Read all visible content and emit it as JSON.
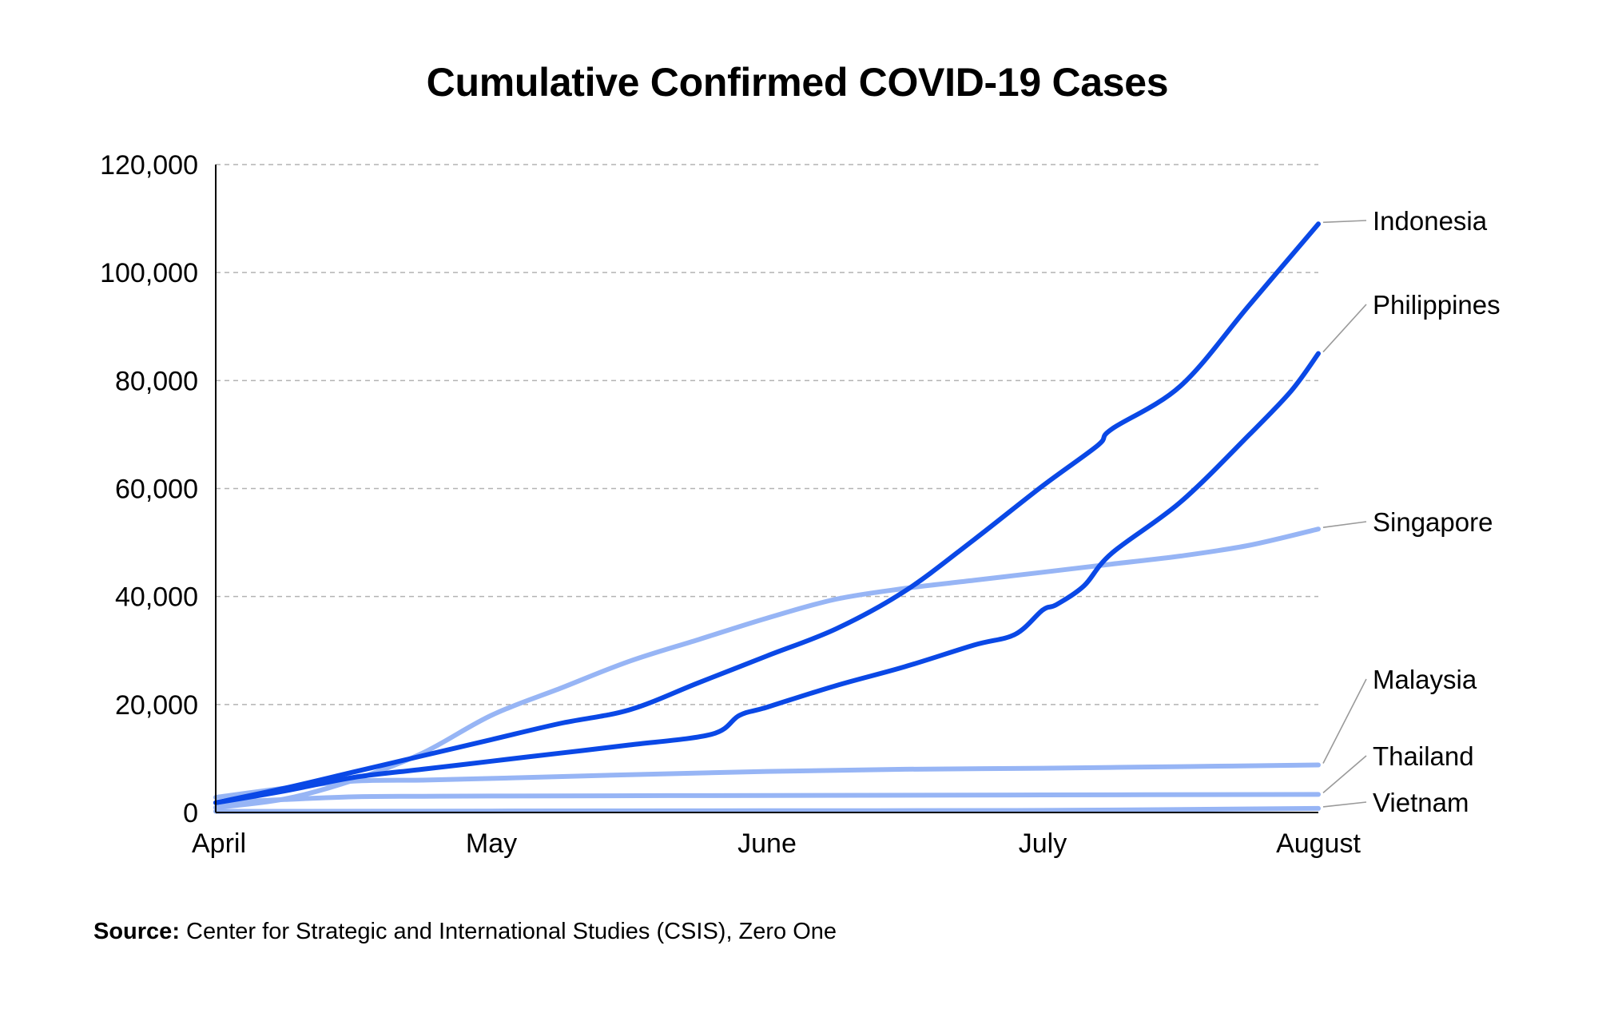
{
  "chart_data": {
    "type": "line",
    "title": "Cumulative Confirmed COVID-19 Cases",
    "xlabel": "",
    "ylabel": "",
    "x_ticks": [
      "April",
      "May",
      "June",
      "July",
      "August"
    ],
    "y_ticks": [
      "0",
      "20,000",
      "40,000",
      "60,000",
      "80,000",
      "100,000",
      "120,000"
    ],
    "ylim": [
      0,
      120000
    ],
    "grid": "horizontal dashed",
    "legend": "direct labels at right end of lines",
    "series": [
      {
        "name": "Indonesia",
        "color": "#0a48e6",
        "width": 6,
        "x": [
          0,
          0.25,
          0.5,
          0.75,
          1,
          1.25,
          1.5,
          1.75,
          2,
          2.25,
          2.5,
          2.75,
          3,
          3.2,
          3.25,
          3.5,
          3.75,
          4
        ],
        "y": [
          1800,
          4500,
          7500,
          10500,
          13500,
          16500,
          19000,
          24000,
          29000,
          34000,
          41000,
          50500,
          60500,
          68000,
          71000,
          79000,
          94000,
          109000
        ]
      },
      {
        "name": "Philippines",
        "color": "#0a48e6",
        "width": 6,
        "x": [
          0,
          0.25,
          0.5,
          0.75,
          1,
          1.25,
          1.5,
          1.8,
          1.9,
          2,
          2.25,
          2.5,
          2.75,
          2.9,
          3,
          3.05,
          3.15,
          3.25,
          3.5,
          3.75,
          3.9,
          4
        ],
        "y": [
          1800,
          4000,
          6500,
          8000,
          9500,
          11000,
          12500,
          14500,
          18000,
          19500,
          23500,
          27000,
          31000,
          33000,
          37500,
          38500,
          42000,
          48000,
          57500,
          70000,
          78000,
          85000
        ]
      },
      {
        "name": "Singapore",
        "color": "#97b5f5",
        "width": 6,
        "x": [
          0,
          0.25,
          0.5,
          0.75,
          1,
          1.25,
          1.5,
          1.75,
          2,
          2.25,
          2.5,
          2.75,
          3,
          3.25,
          3.5,
          3.75,
          4
        ],
        "y": [
          900,
          2500,
          6000,
          11000,
          18000,
          23000,
          28000,
          32000,
          36000,
          39500,
          41500,
          43000,
          44500,
          46000,
          47500,
          49500,
          52500
        ]
      },
      {
        "name": "Malaysia",
        "color": "#97b5f5",
        "width": 6,
        "x": [
          0,
          0.25,
          0.5,
          0.75,
          1,
          1.5,
          2,
          2.5,
          3,
          3.5,
          4
        ],
        "y": [
          2800,
          4500,
          5800,
          6000,
          6300,
          7000,
          7600,
          8000,
          8200,
          8500,
          8800
        ]
      },
      {
        "name": "Thailand",
        "color": "#97b5f5",
        "width": 6,
        "x": [
          0,
          0.25,
          0.5,
          0.75,
          1,
          2,
          3,
          4
        ],
        "y": [
          1800,
          2400,
          2900,
          3000,
          3050,
          3150,
          3250,
          3350
        ]
      },
      {
        "name": "Vietnam",
        "color": "#97b5f5",
        "width": 6,
        "x": [
          0,
          1,
          2,
          3,
          4
        ],
        "y": [
          200,
          270,
          330,
          390,
          750
        ]
      }
    ]
  },
  "source": {
    "label": "Source:",
    "text": "Center for Strategic and International Studies (CSIS), Zero One"
  }
}
